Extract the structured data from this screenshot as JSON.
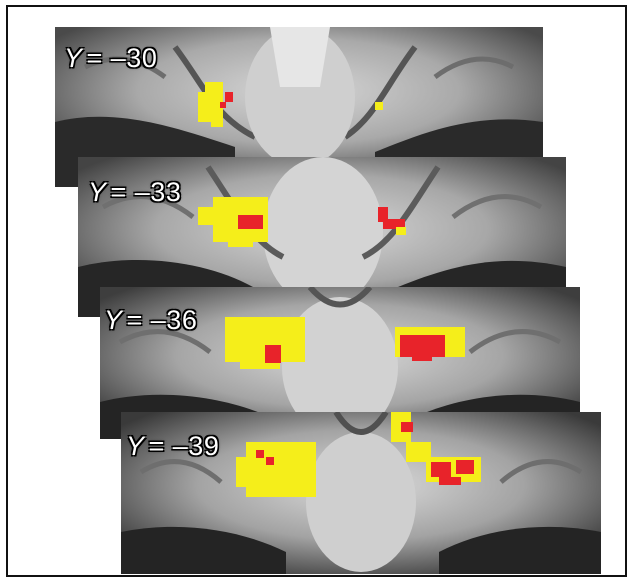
{
  "figure": {
    "slices": [
      {
        "axis": "Y",
        "value": "= –30"
      },
      {
        "axis": "Y",
        "value": "= –33"
      },
      {
        "axis": "Y",
        "value": "= –36"
      },
      {
        "axis": "Y",
        "value": "= –39"
      }
    ]
  },
  "colors": {
    "activation_yellow": "#f5ee1a",
    "activation_red": "#e8232a",
    "label_text": "#ffffff",
    "frame_border": "#111111"
  }
}
